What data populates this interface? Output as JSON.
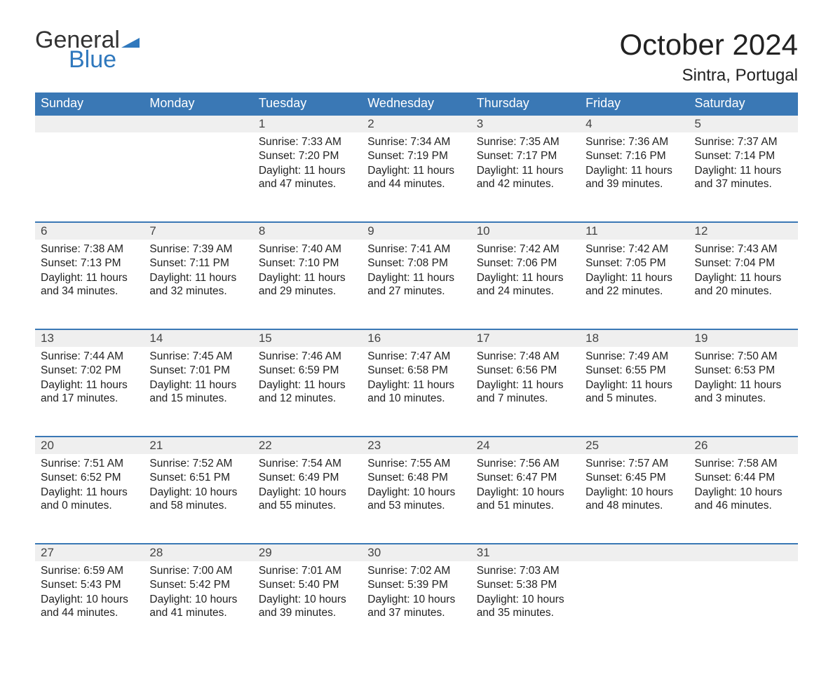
{
  "logo": {
    "word1": "General",
    "word2": "Blue",
    "text_color1": "#333333",
    "text_color2": "#2f78bd",
    "flag_color": "#2f78bd"
  },
  "title": "October 2024",
  "location": "Sintra, Portugal",
  "colors": {
    "header_bg": "#3a78b5",
    "header_text": "#ffffff",
    "daynum_bg": "#efefef",
    "row_border": "#3a78b5",
    "body_text": "#222222",
    "page_bg": "#ffffff"
  },
  "layout": {
    "columns": 7,
    "rows": 5,
    "first_day_column_index": 2
  },
  "weekdays": [
    "Sunday",
    "Monday",
    "Tuesday",
    "Wednesday",
    "Thursday",
    "Friday",
    "Saturday"
  ],
  "labels": {
    "sunrise": "Sunrise:",
    "sunset": "Sunset:",
    "daylight": "Daylight:"
  },
  "days": [
    {
      "n": 1,
      "sunrise": "7:33 AM",
      "sunset": "7:20 PM",
      "daylight": "11 hours and 47 minutes."
    },
    {
      "n": 2,
      "sunrise": "7:34 AM",
      "sunset": "7:19 PM",
      "daylight": "11 hours and 44 minutes."
    },
    {
      "n": 3,
      "sunrise": "7:35 AM",
      "sunset": "7:17 PM",
      "daylight": "11 hours and 42 minutes."
    },
    {
      "n": 4,
      "sunrise": "7:36 AM",
      "sunset": "7:16 PM",
      "daylight": "11 hours and 39 minutes."
    },
    {
      "n": 5,
      "sunrise": "7:37 AM",
      "sunset": "7:14 PM",
      "daylight": "11 hours and 37 minutes."
    },
    {
      "n": 6,
      "sunrise": "7:38 AM",
      "sunset": "7:13 PM",
      "daylight": "11 hours and 34 minutes."
    },
    {
      "n": 7,
      "sunrise": "7:39 AM",
      "sunset": "7:11 PM",
      "daylight": "11 hours and 32 minutes."
    },
    {
      "n": 8,
      "sunrise": "7:40 AM",
      "sunset": "7:10 PM",
      "daylight": "11 hours and 29 minutes."
    },
    {
      "n": 9,
      "sunrise": "7:41 AM",
      "sunset": "7:08 PM",
      "daylight": "11 hours and 27 minutes."
    },
    {
      "n": 10,
      "sunrise": "7:42 AM",
      "sunset": "7:06 PM",
      "daylight": "11 hours and 24 minutes."
    },
    {
      "n": 11,
      "sunrise": "7:42 AM",
      "sunset": "7:05 PM",
      "daylight": "11 hours and 22 minutes."
    },
    {
      "n": 12,
      "sunrise": "7:43 AM",
      "sunset": "7:04 PM",
      "daylight": "11 hours and 20 minutes."
    },
    {
      "n": 13,
      "sunrise": "7:44 AM",
      "sunset": "7:02 PM",
      "daylight": "11 hours and 17 minutes."
    },
    {
      "n": 14,
      "sunrise": "7:45 AM",
      "sunset": "7:01 PM",
      "daylight": "11 hours and 15 minutes."
    },
    {
      "n": 15,
      "sunrise": "7:46 AM",
      "sunset": "6:59 PM",
      "daylight": "11 hours and 12 minutes."
    },
    {
      "n": 16,
      "sunrise": "7:47 AM",
      "sunset": "6:58 PM",
      "daylight": "11 hours and 10 minutes."
    },
    {
      "n": 17,
      "sunrise": "7:48 AM",
      "sunset": "6:56 PM",
      "daylight": "11 hours and 7 minutes."
    },
    {
      "n": 18,
      "sunrise": "7:49 AM",
      "sunset": "6:55 PM",
      "daylight": "11 hours and 5 minutes."
    },
    {
      "n": 19,
      "sunrise": "7:50 AM",
      "sunset": "6:53 PM",
      "daylight": "11 hours and 3 minutes."
    },
    {
      "n": 20,
      "sunrise": "7:51 AM",
      "sunset": "6:52 PM",
      "daylight": "11 hours and 0 minutes."
    },
    {
      "n": 21,
      "sunrise": "7:52 AM",
      "sunset": "6:51 PM",
      "daylight": "10 hours and 58 minutes."
    },
    {
      "n": 22,
      "sunrise": "7:54 AM",
      "sunset": "6:49 PM",
      "daylight": "10 hours and 55 minutes."
    },
    {
      "n": 23,
      "sunrise": "7:55 AM",
      "sunset": "6:48 PM",
      "daylight": "10 hours and 53 minutes."
    },
    {
      "n": 24,
      "sunrise": "7:56 AM",
      "sunset": "6:47 PM",
      "daylight": "10 hours and 51 minutes."
    },
    {
      "n": 25,
      "sunrise": "7:57 AM",
      "sunset": "6:45 PM",
      "daylight": "10 hours and 48 minutes."
    },
    {
      "n": 26,
      "sunrise": "7:58 AM",
      "sunset": "6:44 PM",
      "daylight": "10 hours and 46 minutes."
    },
    {
      "n": 27,
      "sunrise": "6:59 AM",
      "sunset": "5:43 PM",
      "daylight": "10 hours and 44 minutes."
    },
    {
      "n": 28,
      "sunrise": "7:00 AM",
      "sunset": "5:42 PM",
      "daylight": "10 hours and 41 minutes."
    },
    {
      "n": 29,
      "sunrise": "7:01 AM",
      "sunset": "5:40 PM",
      "daylight": "10 hours and 39 minutes."
    },
    {
      "n": 30,
      "sunrise": "7:02 AM",
      "sunset": "5:39 PM",
      "daylight": "10 hours and 37 minutes."
    },
    {
      "n": 31,
      "sunrise": "7:03 AM",
      "sunset": "5:38 PM",
      "daylight": "10 hours and 35 minutes."
    }
  ]
}
